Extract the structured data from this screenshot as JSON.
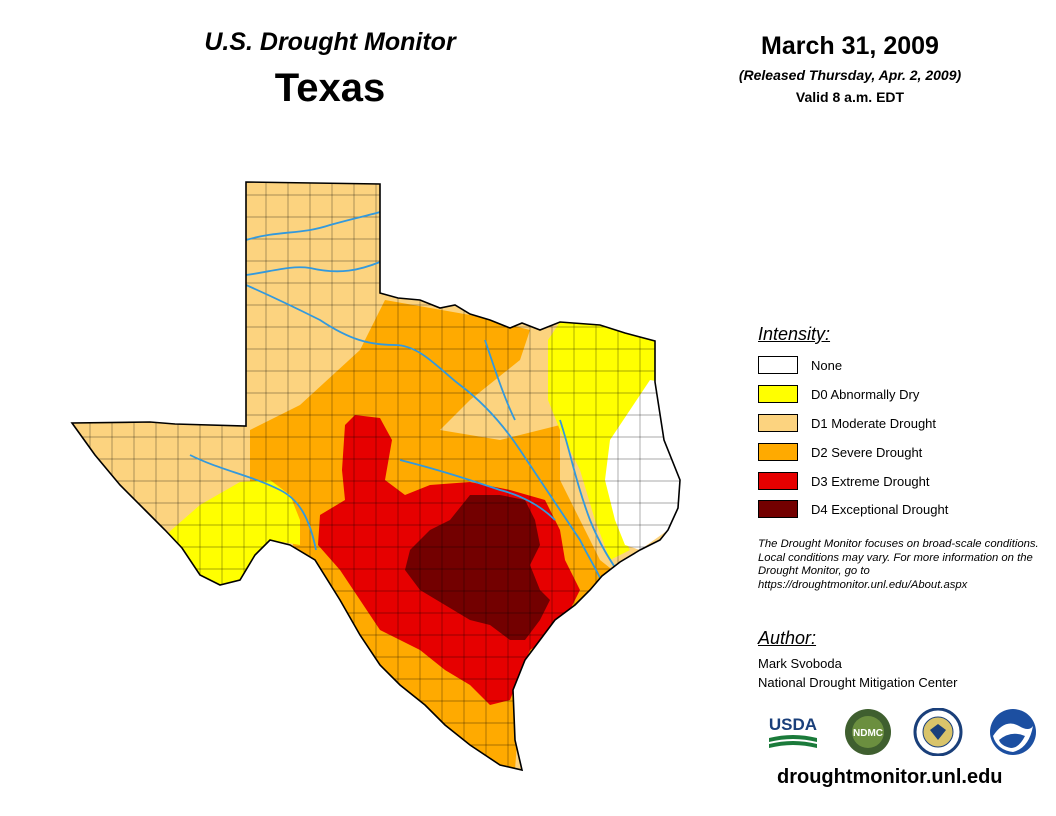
{
  "header": {
    "title": "U.S. Drought Monitor",
    "state": "Texas",
    "date": "March 31, 2009",
    "released": "(Released Thursday, Apr. 2, 2009)",
    "valid": "Valid 8 a.m. EDT"
  },
  "legend": {
    "title": "Intensity:",
    "items": [
      {
        "label": "None",
        "color": "#ffffff"
      },
      {
        "label": "D0 Abnormally Dry",
        "color": "#ffff00"
      },
      {
        "label": "D1 Moderate Drought",
        "color": "#fcd37f"
      },
      {
        "label": "D2 Severe Drought",
        "color": "#ffaa00"
      },
      {
        "label": "D3 Extreme Drought",
        "color": "#e60000"
      },
      {
        "label": "D4 Exceptional Drought",
        "color": "#730000"
      }
    ]
  },
  "note": "The Drought Monitor focuses on broad-scale conditions. Local conditions may vary. For more information on the Drought Monitor, go to https://droughtmonitor.unl.edu/About.aspx",
  "author": {
    "title": "Author:",
    "name": "Mark Svoboda",
    "org": "National Drought Mitigation Center"
  },
  "logos": {
    "usda": "USDA",
    "ndmc": "NDMC",
    "doc": "DOC",
    "noaa": "NOAA"
  },
  "url": "droughtmonitor.unl.edu",
  "map": {
    "region": "Texas",
    "river_color": "#3399dd"
  }
}
